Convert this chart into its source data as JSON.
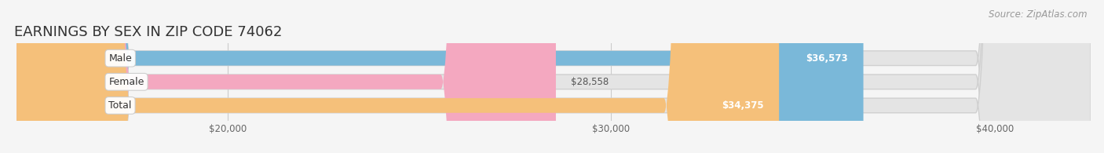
{
  "title": "EARNINGS BY SEX IN ZIP CODE 74062",
  "source": "Source: ZipAtlas.com",
  "categories": [
    "Male",
    "Female",
    "Total"
  ],
  "values": [
    36573,
    28558,
    34375
  ],
  "bar_colors": [
    "#7ab8d9",
    "#f4a8c0",
    "#f5c07a"
  ],
  "value_labels": [
    "$36,573",
    "$28,558",
    "$34,375"
  ],
  "value_label_inside": [
    true,
    false,
    true
  ],
  "xlim_min": 14500,
  "xlim_max": 42500,
  "xtick_values": [
    20000,
    30000,
    40000
  ],
  "xtick_labels": [
    "$20,000",
    "$30,000",
    "$40,000"
  ],
  "background_color": "#f5f5f5",
  "bar_bg_color": "#e4e4e4",
  "bar_edge_color": "#d0d0d0",
  "title_fontsize": 13,
  "source_fontsize": 8.5,
  "bar_height": 0.62,
  "rounding_size": 3000
}
